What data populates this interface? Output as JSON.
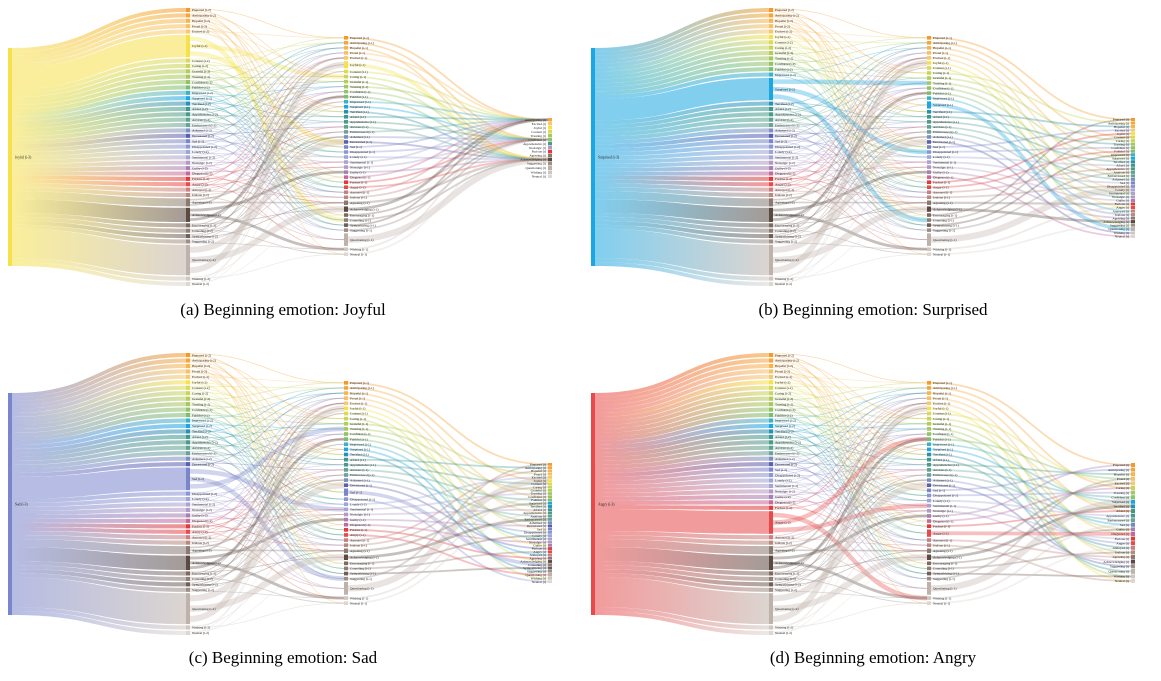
{
  "captions": {
    "a": "(a) Beginning emotion: Joyful",
    "b": "(b) Beginning emotion: Surprised",
    "c": "(c) Beginning emotion: Sad",
    "d": "(d) Beginning emotion: Angry"
  },
  "colors": {
    "Joyful": "#f6e14a",
    "Surprised": "#1aa7e2",
    "Sad": "#7a86cc",
    "Angry": "#e8494b",
    "Questioning": "#bfb2aa",
    "Acknowledging": "#5a4a42",
    "Agreeing": "#9a8a80"
  },
  "panels": [
    {
      "key": "a",
      "source": "Joyful (i-3)",
      "source_color_key": "Joyful",
      "level2": [
        "Prepared (i-2)",
        "Anticipating (i-2)",
        "Hopeful (i-2)",
        "Proud (i-2)",
        "Excited (i-2)",
        "Joyful (i-2)",
        "Content (i-2)",
        "Caring (i-2)",
        "Grateful (i-2)",
        "Trusting (i-2)",
        "Confident (i-2)",
        "Faithful (i-2)",
        "Impressed (i-2)",
        "Surprised (i-2)",
        "Terrified (i-2)",
        "Afraid (i-2)",
        "Apprehensive (i-2)",
        "Anxious (i-2)",
        "Embarrassed (i-2)",
        "Ashamed (i-2)",
        "Devastated (i-2)",
        "Sad (i-2)",
        "Disappointed (i-2)",
        "Lonely (i-2)",
        "Sentimental (i-2)",
        "Nostalgic (i-2)",
        "Guilty (i-2)",
        "Disgusted (i-2)",
        "Furious (i-2)",
        "Angry (i-2)",
        "Annoyed (i-2)",
        "Jealous (i-2)",
        "Agreeing (i-2)",
        "Acknowledging (i-2)",
        "Encouraging (i-2)",
        "Consoling (i-2)",
        "Sympathizing (i-2)",
        "Suggesting (i-2)",
        "Questioning (i-2)",
        "Wishing (i-2)",
        "Neutral (i-2)"
      ],
      "level1": [
        "Prepared (i-1)",
        "Anticipating (i-1)",
        "Hopeful (i-1)",
        "Proud (i-1)",
        "Excited (i-1)",
        "Joyful (i-1)",
        "Content (i-1)",
        "Caring (i-1)",
        "Grateful (i-1)",
        "Trusting (i-1)",
        "Confident (i-1)",
        "Faithful (i-1)",
        "Impressed (i-1)",
        "Surprised (i-1)",
        "Terrified (i-1)",
        "Afraid (i-1)",
        "Apprehensive (i-1)",
        "Anxious (i-1)",
        "Embarrassed (i-1)",
        "Ashamed (i-1)",
        "Devastated (i-1)",
        "Sad (i-1)",
        "Disappointed (i-1)",
        "Lonely (i-1)",
        "Sentimental (i-1)",
        "Nostalgic (i-1)",
        "Guilty (i-1)",
        "Disgusted (i-1)",
        "Furious (i-1)",
        "Angry (i-1)",
        "Annoyed (i-1)",
        "Jealous (i-1)",
        "Agreeing (i-1)",
        "Acknowledging (i-1)",
        "Encouraging (i-1)",
        "Consoling (i-1)",
        "Sympathizing (i-1)",
        "Suggesting (i-1)",
        "Questioning (i-1)",
        "Wishing (i-1)",
        "Neutral (i-1)"
      ],
      "level0": [
        "Anticipating (i)",
        "Excited (i)",
        "Joyful (i)",
        "Content (i)",
        "Trusting (i)",
        "Confident (i)",
        "Apprehensive (i)",
        "Nostalgic (i)",
        "Furious (i)",
        "Agreeing (i)",
        "Acknowledging (i)",
        "Suggesting (i)",
        "Questioning (i)",
        "Wishing (i)",
        "Neutral (i)"
      ]
    },
    {
      "key": "b",
      "source": "Surprised (i-3)",
      "source_color_key": "Surprised",
      "level2": [
        "Prepared (i-2)",
        "Anticipating (i-2)",
        "Hopeful (i-2)",
        "Proud (i-2)",
        "Excited (i-2)",
        "Joyful (i-2)",
        "Content (i-2)",
        "Caring (i-2)",
        "Grateful (i-2)",
        "Trusting (i-2)",
        "Confident (i-2)",
        "Faithful (i-2)",
        "Impressed (i-2)",
        "Surprised (i-2)",
        "Terrified (i-2)",
        "Afraid (i-2)",
        "Apprehensive (i-2)",
        "Anxious (i-2)",
        "Embarrassed (i-2)",
        "Ashamed (i-2)",
        "Devastated (i-2)",
        "Sad (i-2)",
        "Disappointed (i-2)",
        "Lonely (i-2)",
        "Sentimental (i-2)",
        "Nostalgic (i-2)",
        "Guilty (i-2)",
        "Disgusted (i-2)",
        "Furious (i-2)",
        "Angry (i-2)",
        "Annoyed (i-2)",
        "Jealous (i-2)",
        "Agreeing (i-2)",
        "Acknowledging (i-2)",
        "Encouraging (i-2)",
        "Consoling (i-2)",
        "Sympathizing (i-2)",
        "Suggesting (i-2)",
        "Questioning (i-2)",
        "Wishing (i-2)",
        "Neutral (i-2)"
      ],
      "level1": [
        "Prepared (i-1)",
        "Anticipating (i-1)",
        "Hopeful (i-1)",
        "Proud (i-1)",
        "Excited (i-1)",
        "Joyful (i-1)",
        "Content (i-1)",
        "Caring (i-1)",
        "Grateful (i-1)",
        "Trusting (i-1)",
        "Confident (i-1)",
        "Faithful (i-1)",
        "Impressed (i-1)",
        "Surprised (i-1)",
        "Terrified (i-1)",
        "Afraid (i-1)",
        "Apprehensive (i-1)",
        "Anxious (i-1)",
        "Embarrassed (i-1)",
        "Ashamed (i-1)",
        "Devastated (i-1)",
        "Sad (i-1)",
        "Disappointed (i-1)",
        "Lonely (i-1)",
        "Sentimental (i-1)",
        "Nostalgic (i-1)",
        "Guilty (i-1)",
        "Disgusted (i-1)",
        "Furious (i-1)",
        "Angry (i-1)",
        "Annoyed (i-1)",
        "Jealous (i-1)",
        "Agreeing (i-1)",
        "Acknowledging (i-1)",
        "Encouraging (i-1)",
        "Consoling (i-1)",
        "Sympathizing (i-1)",
        "Suggesting (i-1)",
        "Questioning (i-1)",
        "Wishing (i-1)",
        "Neutral (i-1)"
      ],
      "level0": [
        "Prepared (i)",
        "Anticipating (i)",
        "Hopeful (i)",
        "Excited (i)",
        "Joyful (i)",
        "Content (i)",
        "Caring (i)",
        "Trusting (i)",
        "Confident (i)",
        "Faithful (i)",
        "Impressed (i)",
        "Surprised (i)",
        "Terrified (i)",
        "Afraid (i)",
        "Apprehensive (i)",
        "Anxious (i)",
        "Embarrassed (i)",
        "Ashamed (i)",
        "Sad (i)",
        "Disappointed (i)",
        "Lonely (i)",
        "Sentimental (i)",
        "Nostalgic (i)",
        "Guilty (i)",
        "Furious (i)",
        "Angry (i)",
        "Annoyed (i)",
        "Jealous (i)",
        "Agreeing (i)",
        "Acknowledging (i)",
        "Suggesting (i)",
        "Questioning (i)",
        "Wishing (i)",
        "Neutral (i)"
      ]
    },
    {
      "key": "c",
      "source": "Sad (i-3)",
      "source_color_key": "Sad",
      "level2": [
        "Prepared (i-2)",
        "Anticipating (i-2)",
        "Hopeful (i-2)",
        "Proud (i-2)",
        "Excited (i-2)",
        "Joyful (i-2)",
        "Content (i-2)",
        "Caring (i-2)",
        "Grateful (i-2)",
        "Trusting (i-2)",
        "Confident (i-2)",
        "Faithful (i-2)",
        "Impressed (i-2)",
        "Surprised (i-2)",
        "Terrified (i-2)",
        "Afraid (i-2)",
        "Apprehensive (i-2)",
        "Anxious (i-2)",
        "Embarrassed (i-2)",
        "Ashamed (i-2)",
        "Devastated (i-2)",
        "Sad (i-2)",
        "Disappointed (i-2)",
        "Lonely (i-2)",
        "Sentimental (i-2)",
        "Nostalgic (i-2)",
        "Guilty (i-2)",
        "Disgusted (i-2)",
        "Furious (i-2)",
        "Angry (i-2)",
        "Annoyed (i-2)",
        "Jealous (i-2)",
        "Agreeing (i-2)",
        "Acknowledging (i-2)",
        "Encouraging (i-2)",
        "Consoling (i-2)",
        "Sympathizing (i-2)",
        "Suggesting (i-2)",
        "Questioning (i-2)",
        "Wishing (i-2)",
        "Neutral (i-2)"
      ],
      "level1": [
        "Prepared (i-1)",
        "Anticipating (i-1)",
        "Hopeful (i-1)",
        "Proud (i-1)",
        "Excited (i-1)",
        "Joyful (i-1)",
        "Content (i-1)",
        "Caring (i-1)",
        "Grateful (i-1)",
        "Trusting (i-1)",
        "Confident (i-1)",
        "Faithful (i-1)",
        "Impressed (i-1)",
        "Surprised (i-1)",
        "Terrified (i-1)",
        "Afraid (i-1)",
        "Apprehensive (i-1)",
        "Anxious (i-1)",
        "Embarrassed (i-1)",
        "Ashamed (i-1)",
        "Devastated (i-1)",
        "Sad (i-1)",
        "Disappointed (i-1)",
        "Lonely (i-1)",
        "Sentimental (i-1)",
        "Nostalgic (i-1)",
        "Guilty (i-1)",
        "Disgusted (i-1)",
        "Furious (i-1)",
        "Angry (i-1)",
        "Annoyed (i-1)",
        "Jealous (i-1)",
        "Agreeing (i-1)",
        "Acknowledging (i-1)",
        "Encouraging (i-1)",
        "Consoling (i-1)",
        "Sympathizing (i-1)",
        "Suggesting (i-1)",
        "Questioning (i-1)",
        "Wishing (i-1)",
        "Neutral (i-1)"
      ],
      "level0": [
        "Prepared (i)",
        "Anticipating (i)",
        "Hopeful (i)",
        "Proud (i)",
        "Excited (i)",
        "Joyful (i)",
        "Content (i)",
        "Caring (i)",
        "Grateful (i)",
        "Trusting (i)",
        "Confident (i)",
        "Faithful (i)",
        "Surprised (i)",
        "Terrified (i)",
        "Afraid (i)",
        "Apprehensive (i)",
        "Anxious (i)",
        "Embarrassed (i)",
        "Ashamed (i)",
        "Devastated (i)",
        "Sad (i)",
        "Disappointed (i)",
        "Lonely (i)",
        "Sentimental (i)",
        "Nostalgic (i)",
        "Guilty (i)",
        "Furious (i)",
        "Angry (i)",
        "Annoyed (i)",
        "Agreeing (i)",
        "Acknowledging (i)",
        "Consoling (i)",
        "Sympathizing (i)",
        "Suggesting (i)",
        "Questioning (i)",
        "Wishing (i)",
        "Neutral (i)"
      ]
    },
    {
      "key": "d",
      "source": "Angry (i-3)",
      "source_color_key": "Angry",
      "level2": [
        "Prepared (i-2)",
        "Anticipating (i-2)",
        "Hopeful (i-2)",
        "Proud (i-2)",
        "Excited (i-2)",
        "Joyful (i-2)",
        "Content (i-2)",
        "Caring (i-2)",
        "Grateful (i-2)",
        "Trusting (i-2)",
        "Confident (i-2)",
        "Faithful (i-2)",
        "Impressed (i-2)",
        "Surprised (i-2)",
        "Terrified (i-2)",
        "Afraid (i-2)",
        "Apprehensive (i-2)",
        "Anxious (i-2)",
        "Embarrassed (i-2)",
        "Ashamed (i-2)",
        "Devastated (i-2)",
        "Sad (i-2)",
        "Disappointed (i-2)",
        "Lonely (i-2)",
        "Sentimental (i-2)",
        "Nostalgic (i-2)",
        "Guilty (i-2)",
        "Disgusted (i-2)",
        "Furious (i-2)",
        "Angry (i-2)",
        "Annoyed (i-2)",
        "Jealous (i-2)",
        "Agreeing (i-2)",
        "Acknowledging (i-2)",
        "Encouraging (i-2)",
        "Consoling (i-2)",
        "Sympathizing (i-2)",
        "Suggesting (i-2)",
        "Questioning (i-2)",
        "Wishing (i-2)",
        "Neutral (i-2)"
      ],
      "level1": [
        "Prepared (i-1)",
        "Anticipating (i-1)",
        "Hopeful (i-1)",
        "Proud (i-1)",
        "Excited (i-1)",
        "Joyful (i-1)",
        "Content (i-1)",
        "Caring (i-1)",
        "Grateful (i-1)",
        "Trusting (i-1)",
        "Confident (i-1)",
        "Faithful (i-1)",
        "Impressed (i-1)",
        "Surprised (i-1)",
        "Terrified (i-1)",
        "Afraid (i-1)",
        "Apprehensive (i-1)",
        "Anxious (i-1)",
        "Embarrassed (i-1)",
        "Ashamed (i-1)",
        "Devastated (i-1)",
        "Sad (i-1)",
        "Disappointed (i-1)",
        "Lonely (i-1)",
        "Sentimental (i-1)",
        "Nostalgic (i-1)",
        "Guilty (i-1)",
        "Disgusted (i-1)",
        "Furious (i-1)",
        "Angry (i-1)",
        "Annoyed (i-1)",
        "Jealous (i-1)",
        "Agreeing (i-1)",
        "Acknowledging (i-1)",
        "Encouraging (i-1)",
        "Consoling (i-1)",
        "Sympathizing (i-1)",
        "Suggesting (i-1)",
        "Questioning (i-1)",
        "Wishing (i-1)",
        "Neutral (i-1)"
      ],
      "level0": [
        "Prepared (i)",
        "Anticipating (i)",
        "Hopeful (i)",
        "Proud (i)",
        "Excited (i)",
        "Caring (i)",
        "Trusting (i)",
        "Confident (i)",
        "Surprised (i)",
        "Terrified (i)",
        "Afraid (i)",
        "Apprehensive (i)",
        "Embarrassed (i)",
        "Sad (i)",
        "Guilty (i)",
        "Disgusted (i)",
        "Furious (i)",
        "Angry (i)",
        "Annoyed (i)",
        "Jealous (i)",
        "Agreeing (i)",
        "Acknowledging (i)",
        "Suggesting (i)",
        "Questioning (i)",
        "Wishing (i)",
        "Neutral (i)"
      ]
    }
  ]
}
